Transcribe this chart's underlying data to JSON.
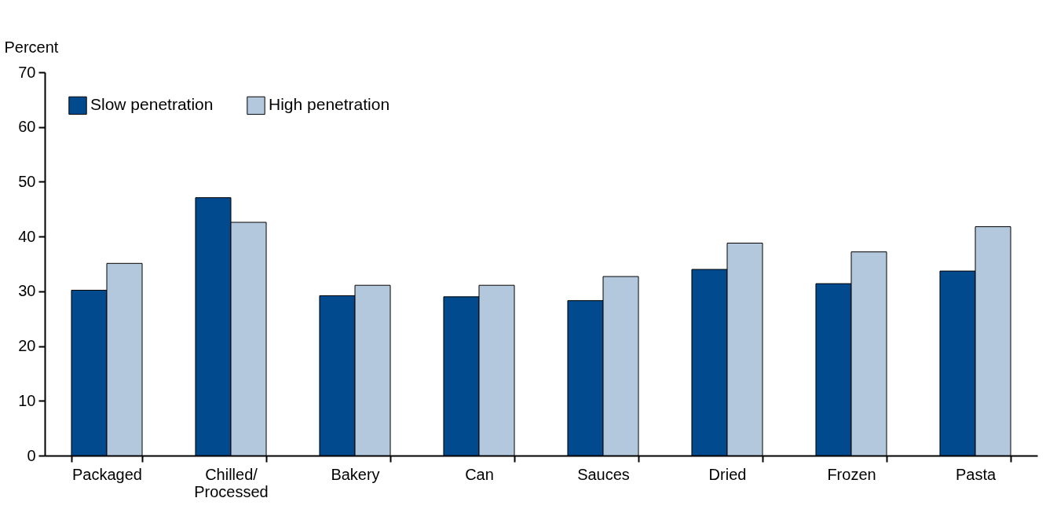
{
  "chart_data": {
    "type": "bar",
    "ylabel": "Percent",
    "categories": [
      "Packaged",
      "Chilled/\nProcessed",
      "Bakery",
      "Can",
      "Sauces",
      "Dried",
      "Frozen",
      "Pasta"
    ],
    "series": [
      {
        "name": "Slow penetration",
        "color": "#004a8d",
        "values": [
          30.2,
          47.1,
          29.2,
          29.0,
          28.3,
          34.0,
          31.4,
          33.7
        ]
      },
      {
        "name": "High penetration",
        "color": "#b3c7dd",
        "values": [
          35.1,
          42.6,
          31.1,
          31.1,
          32.7,
          38.8,
          37.2,
          41.8
        ]
      }
    ],
    "ylim": [
      0,
      70
    ],
    "yticks": [
      0,
      10,
      20,
      30,
      40,
      50,
      60,
      70
    ],
    "grid": false,
    "legend": "top left"
  }
}
